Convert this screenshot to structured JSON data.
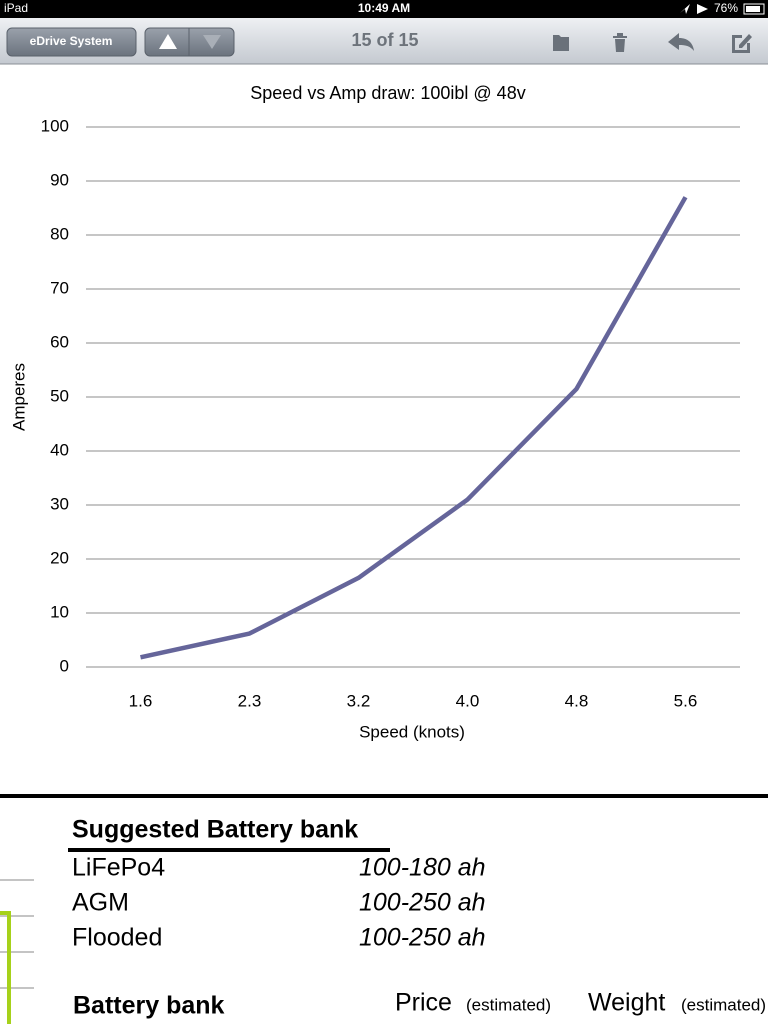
{
  "status_bar": {
    "carrier": "iPad",
    "time": "10:49 AM",
    "battery": "76%"
  },
  "toolbar": {
    "back_button": "eDrive System",
    "position": "15 of 15"
  },
  "chart_data": {
    "type": "line",
    "title": "Speed vs Amp draw: 100ibl @ 48v",
    "x_label": "Speed (knots)",
    "y_label": "Amperes",
    "categories": [
      "1.6",
      "2.3",
      "3.2",
      "4.0",
      "4.8",
      "5.6"
    ],
    "values": [
      1.8,
      6.2,
      16.5,
      31,
      51.5,
      87
    ],
    "color": "#65659a",
    "ylim": [
      0,
      100
    ],
    "yticks": [
      0,
      10,
      20,
      30,
      40,
      50,
      60,
      70,
      80,
      90,
      100
    ],
    "grid": true
  },
  "document": {
    "section_title": "Suggested Battery bank",
    "rows": [
      [
        "LiFePo4",
        "100-180 ah"
      ],
      [
        "AGM",
        "100-250 ah"
      ],
      [
        "Flooded",
        "100-250 ah"
      ]
    ],
    "table_header": {
      "title": "Battery bank",
      "price": "Price",
      "price_note": "(estimated)",
      "weight": "Weight",
      "weight_note": "(estimated)"
    }
  }
}
